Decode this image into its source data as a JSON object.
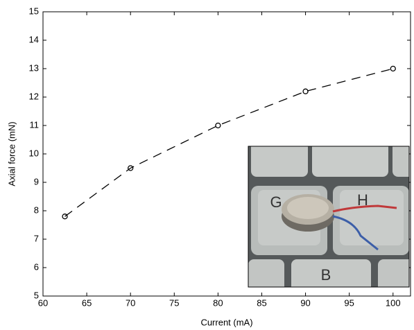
{
  "chart_data": {
    "type": "line",
    "x_label": "Current (mA)",
    "y_label": "Axial force (mN)",
    "x": [
      62.5,
      70,
      80,
      90,
      100
    ],
    "series": [
      {
        "color": "#000000",
        "values": [
          7.8,
          9.5,
          11,
          12.2,
          13
        ]
      }
    ],
    "xlim": [
      60,
      102
    ],
    "xticks": [
      60,
      65,
      70,
      75,
      80,
      85,
      90,
      95,
      100
    ],
    "ylim": [
      5,
      15
    ],
    "yticks": [
      5,
      6,
      7,
      8,
      9,
      10,
      11,
      12,
      13,
      14,
      15
    ],
    "grid": false,
    "inset_key_labels": [
      "G",
      "H",
      "B"
    ]
  }
}
